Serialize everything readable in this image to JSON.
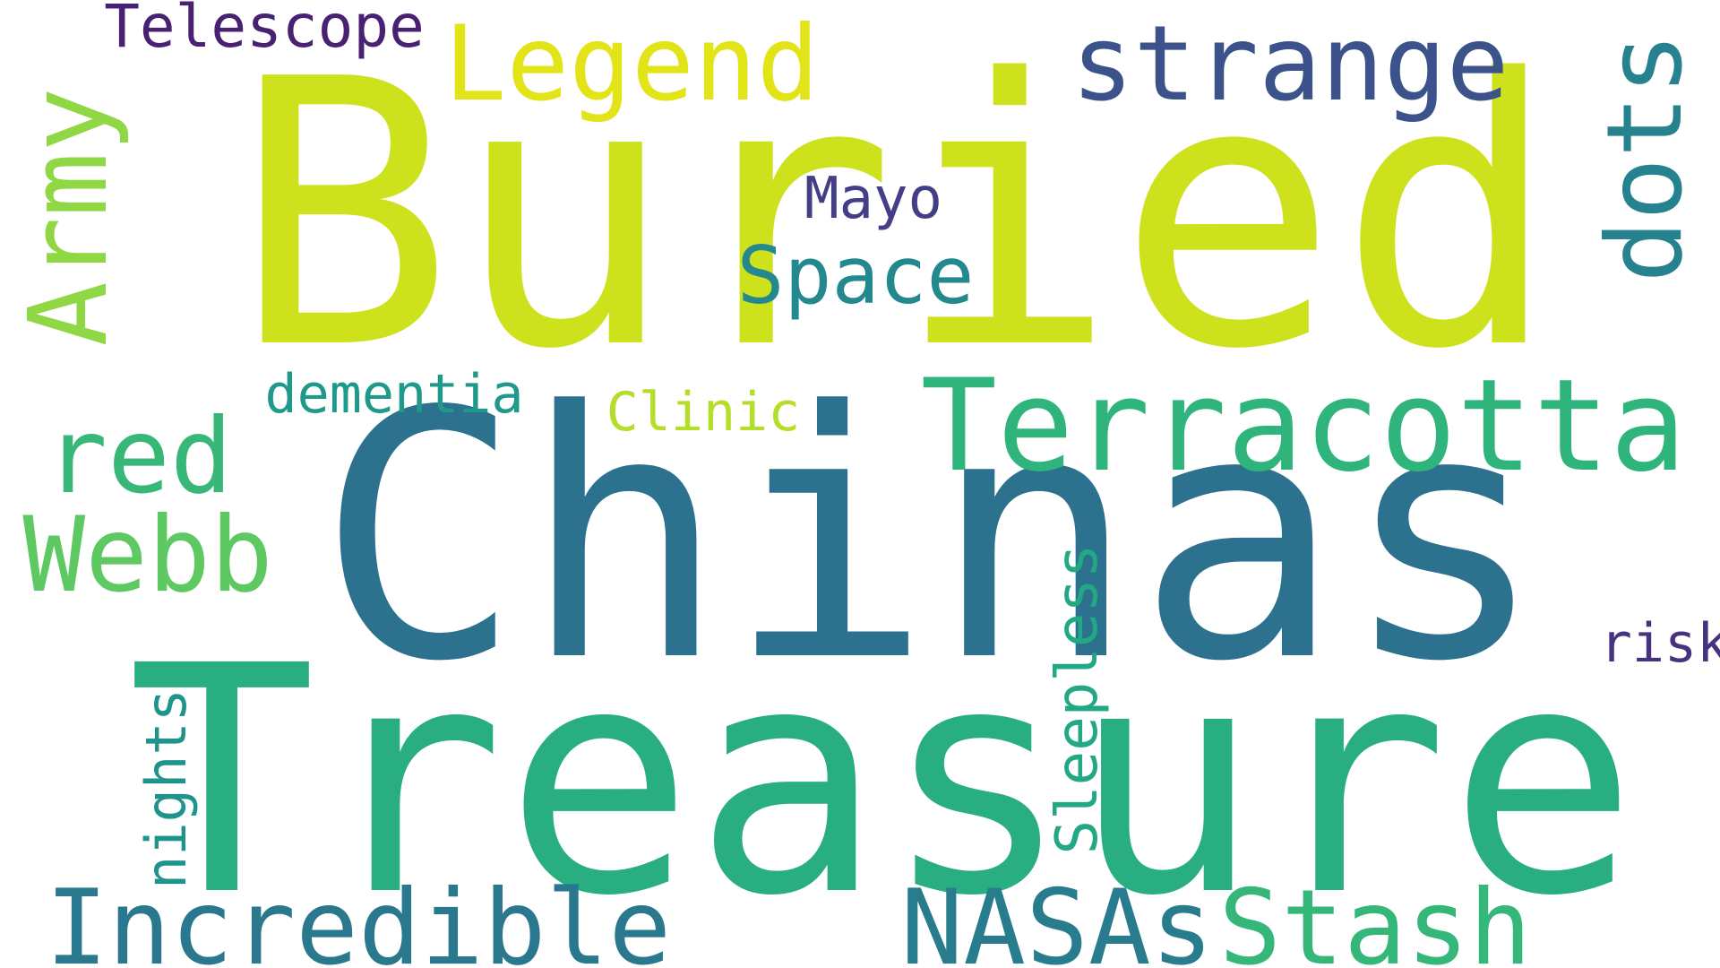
{
  "words": {
    "buried": {
      "text": "Buried",
      "color": "#cde11d"
    },
    "chinas": {
      "text": "Chinas",
      "color": "#2c728e"
    },
    "treasure": {
      "text": "Treasure",
      "color": "#28ae80"
    },
    "terracotta": {
      "text": "Terracotta",
      "color": "#2fb47c"
    },
    "stash": {
      "text": "Stash",
      "color": "#35b779"
    },
    "nasas": {
      "text": "NASAs",
      "color": "#287c8e"
    },
    "incredible": {
      "text": "Incredible",
      "color": "#2a788e"
    },
    "strange": {
      "text": "strange",
      "color": "#3b528b"
    },
    "legend": {
      "text": "Legend",
      "color": "#e2e418"
    },
    "webb": {
      "text": "Webb",
      "color": "#5ec962"
    },
    "red": {
      "text": "red",
      "color": "#37b878"
    },
    "space": {
      "text": "Space",
      "color": "#23898e"
    },
    "telescope": {
      "text": "Telescope",
      "color": "#482173"
    },
    "mayo": {
      "text": "Mayo",
      "color": "#433e85"
    },
    "dementia": {
      "text": "dementia",
      "color": "#1f9a8a"
    },
    "clinic": {
      "text": "Clinic",
      "color": "#b5de2b"
    },
    "risk": {
      "text": "risk",
      "color": "#46327e"
    },
    "army": {
      "text": "Army",
      "color": "#8fd744"
    },
    "dots": {
      "text": "dots",
      "color": "#26828e"
    },
    "sleepless": {
      "text": "Sleepless",
      "color": "#22a884"
    },
    "nights": {
      "text": "nights",
      "color": "#1f948c"
    }
  }
}
